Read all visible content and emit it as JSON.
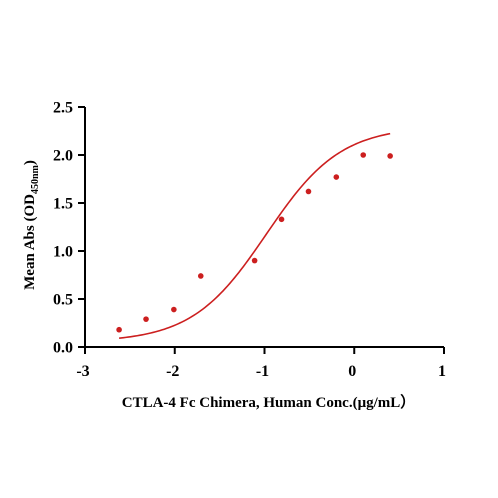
{
  "chart_data": {
    "type": "scatter",
    "xlabel": "CTLA-4 Fc Chimera, Human  Conc.(μg/mL）",
    "ylabel_main": "Mean Abs (OD",
    "ylabel_sub": "450nm",
    "ylabel_close": ")",
    "xlim": [
      -3,
      1
    ],
    "ylim": [
      0,
      2.5
    ],
    "x_ticks": [
      -3,
      -2,
      -1,
      0,
      1
    ],
    "x_tick_labels": [
      "-3",
      "-2",
      "-1",
      "0",
      "1"
    ],
    "y_ticks": [
      0,
      0.5,
      1.0,
      1.5,
      2.0,
      2.5
    ],
    "y_tick_labels": [
      "0.0",
      "0.5",
      "1.0",
      "1.5",
      "2.0",
      "2.5"
    ],
    "grid": false,
    "colors": {
      "series": "#cc1f1f",
      "axis": "#000000"
    },
    "series": [
      {
        "points": [
          {
            "x": -2.62,
            "y": 0.18
          },
          {
            "x": -2.32,
            "y": 0.29
          },
          {
            "x": -2.01,
            "y": 0.39
          },
          {
            "x": -1.71,
            "y": 0.74
          },
          {
            "x": -1.11,
            "y": 0.9
          },
          {
            "x": -0.81,
            "y": 1.33
          },
          {
            "x": -0.51,
            "y": 1.62
          },
          {
            "x": -0.2,
            "y": 1.77
          },
          {
            "x": 0.1,
            "y": 2.0
          },
          {
            "x": 0.4,
            "y": 1.99
          }
        ],
        "fit": {
          "model": "4PL",
          "bottom": 0.05,
          "top": 2.3,
          "ec50_log": -0.98,
          "hill": 1.05,
          "x_range": [
            -2.62,
            0.4
          ]
        }
      }
    ]
  }
}
